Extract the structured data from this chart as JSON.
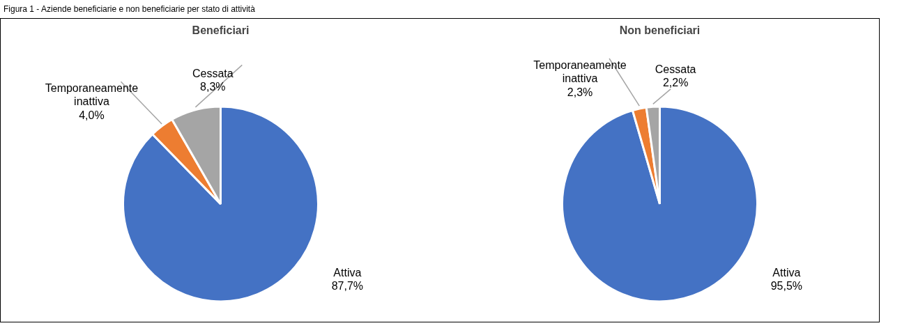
{
  "chart_data": [
    {
      "type": "pie",
      "title": "Beneficiari",
      "annotations": [
        "Figura 1 - Aziende beneficiarie e non beneficiarie per stato di attività"
      ],
      "categories": [
        "Attiva",
        "Temporaneamente inattiva",
        "Cessata"
      ],
      "values": [
        87.7,
        4.0,
        8.3
      ],
      "colors": [
        "#4472c4",
        "#ed7d31",
        "#a5a5a5"
      ],
      "value_labels": [
        "87,7%",
        "4,0%",
        "8,3%"
      ]
    },
    {
      "type": "pie",
      "title": "Non beneficiari",
      "categories": [
        "Attiva",
        "Temporaneamente inattiva",
        "Cessata"
      ],
      "values": [
        95.5,
        2.3,
        2.2
      ],
      "colors": [
        "#4472c4",
        "#ed7d31",
        "#a5a5a5"
      ],
      "value_labels": [
        "95,5%",
        "2,3%",
        "2,2%"
      ]
    }
  ]
}
